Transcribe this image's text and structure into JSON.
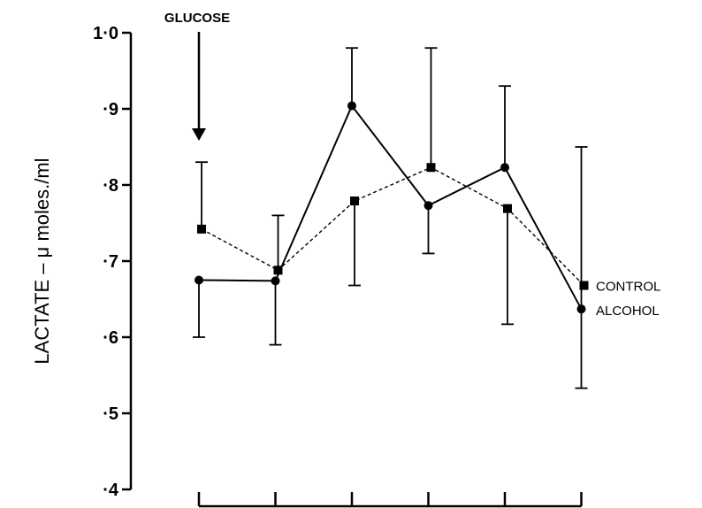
{
  "chart_data": {
    "type": "line",
    "title": "",
    "xlabel": "",
    "ylabel": "LACTATE – μ moles./ml",
    "ylim": [
      0.4,
      1.0
    ],
    "yticks": [
      {
        "value": 1.0,
        "label": "1·0"
      },
      {
        "value": 0.9,
        "label": "·9"
      },
      {
        "value": 0.8,
        "label": "·8"
      },
      {
        "value": 0.7,
        "label": "·7"
      },
      {
        "value": 0.6,
        "label": "·6"
      },
      {
        "value": 0.5,
        "label": "·5"
      },
      {
        "value": 0.4,
        "label": "·4"
      }
    ],
    "x": [
      1,
      2,
      3,
      4,
      5,
      6
    ],
    "xtick_labels": [],
    "grid": false,
    "legend": "labels at right end of lines",
    "annotations": [
      {
        "text": "GLUCOSE",
        "x": 1,
        "arrow": "down"
      }
    ],
    "series": [
      {
        "name": "CONTROL",
        "marker": "square",
        "line": "dashed",
        "color": "#000000",
        "values": [
          0.742,
          0.688,
          0.779,
          0.823,
          0.769,
          0.668
        ],
        "error_low": [
          null,
          null,
          0.668,
          null,
          0.617,
          null
        ],
        "error_high": [
          0.83,
          0.76,
          null,
          0.98,
          null,
          null
        ]
      },
      {
        "name": "ALCOHOL",
        "marker": "circle",
        "line": "solid",
        "color": "#000000",
        "values": [
          0.675,
          0.674,
          0.904,
          0.773,
          0.823,
          0.637
        ],
        "error_low": [
          0.6,
          0.59,
          null,
          0.71,
          null,
          0.533
        ],
        "error_high": [
          null,
          null,
          0.98,
          null,
          0.93,
          0.85
        ]
      }
    ]
  }
}
